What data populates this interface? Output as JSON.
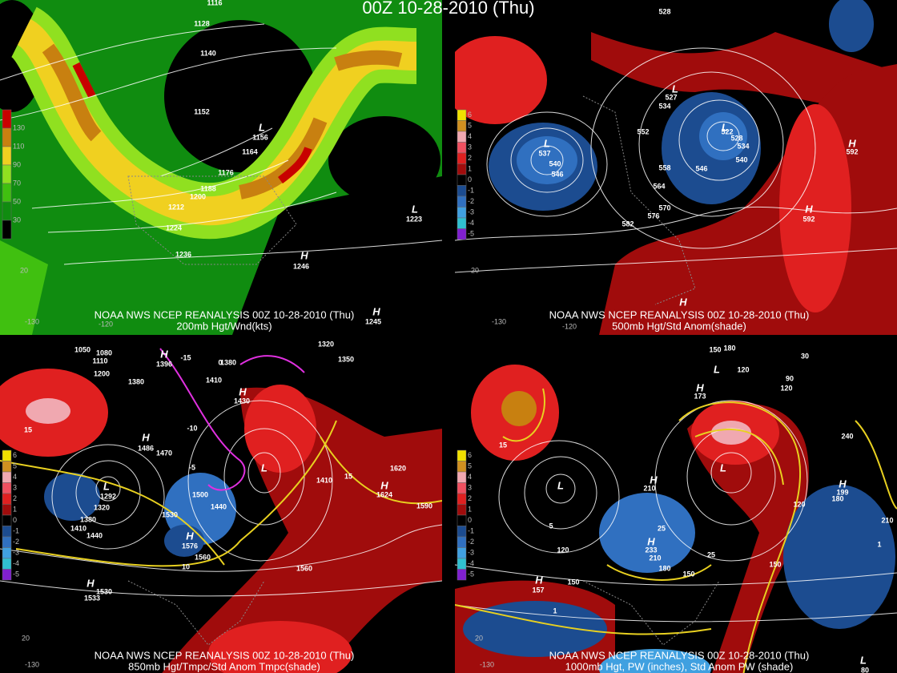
{
  "title": "00Z 10-28-2010 (Thu)",
  "panels": [
    {
      "source": "NOAA NWS NCEP REANALYSIS 00Z 10-28-2010 (Thu)",
      "caption": "200mb Hgt/Wnd(kts)",
      "legend": [
        {
          "label": "130",
          "color": "#c80000"
        },
        {
          "label": "110",
          "color": "#c88010"
        },
        {
          "label": "90",
          "color": "#f0d020"
        },
        {
          "label": "70",
          "color": "#90e020"
        },
        {
          "label": "50",
          "color": "#40c010"
        },
        {
          "label": "30",
          "color": "#108c10"
        }
      ],
      "labels": [
        "1116",
        "1128",
        "1140",
        "1152",
        "L",
        "1156",
        "1164",
        "1176",
        "1188",
        "1200",
        "1212",
        "1224",
        "1236",
        "H",
        "1246",
        "L",
        "1223",
        "H",
        "1245"
      ],
      "axis_labels": [
        "-130",
        "-120",
        "20"
      ]
    },
    {
      "source": "NOAA NWS NCEP REANALYSIS 00Z 10-28-2010 (Thu)",
      "caption": "500mb Hgt/Std Anom(shade)",
      "legend": [
        {
          "label": "6",
          "color": "#f0e000"
        },
        {
          "label": "5",
          "color": "#d09020"
        },
        {
          "label": "4",
          "color": "#f0a8b0"
        },
        {
          "label": "3",
          "color": "#f05060"
        },
        {
          "label": "2",
          "color": "#e02020"
        },
        {
          "label": "1",
          "color": "#a00c0c"
        },
        {
          "label": "0",
          "color": "#000000"
        },
        {
          "label": "-1",
          "color": "#1c4c90"
        },
        {
          "label": "-2",
          "color": "#3070c0"
        },
        {
          "label": "-3",
          "color": "#40a0e0"
        },
        {
          "label": "-4",
          "color": "#30c0d0"
        },
        {
          "label": "-5",
          "color": "#8020d0"
        }
      ],
      "labels": [
        "528",
        "L",
        "527",
        "534",
        "552",
        "558",
        "564",
        "570",
        "576",
        "582",
        "L",
        "537",
        "540",
        "546",
        "L",
        "522",
        "528",
        "534",
        "540",
        "546",
        "H",
        "592",
        "H",
        "592",
        "H"
      ],
      "axis_labels": [
        "-130",
        "-120",
        "20"
      ]
    },
    {
      "source": "NOAA NWS NCEP REANALYSIS 00Z 10-28-2010 (Thu)",
      "caption": "850mb Hgt/Tmpc/Std Anom Tmpc(shade)",
      "legend": [
        {
          "label": "6",
          "color": "#f0e000"
        },
        {
          "label": "5",
          "color": "#d09020"
        },
        {
          "label": "4",
          "color": "#f0a8b0"
        },
        {
          "label": "3",
          "color": "#f05060"
        },
        {
          "label": "2",
          "color": "#e02020"
        },
        {
          "label": "1",
          "color": "#a00c0c"
        },
        {
          "label": "0",
          "color": "#000000"
        },
        {
          "label": "-1",
          "color": "#1c4c90"
        },
        {
          "label": "-2",
          "color": "#3070c0"
        },
        {
          "label": "-3",
          "color": "#40a0e0"
        },
        {
          "label": "-4",
          "color": "#30c0d0"
        },
        {
          "label": "-5",
          "color": "#8020d0"
        }
      ],
      "labels": [
        "1050",
        "1080",
        "1110",
        "1200",
        "1380",
        "H",
        "1396",
        "1320",
        "1350",
        "1410",
        "1380",
        "H",
        "1430",
        "H",
        "1486",
        "1470",
        "L",
        "1292",
        "1320",
        "1380",
        "1410",
        "1440",
        "1530",
        "1500",
        "1440",
        "H",
        "1576",
        "1560",
        "H",
        "1533",
        "1530",
        "1560",
        "1590",
        "1620",
        "H",
        "1624",
        "1410",
        "L",
        "15",
        "10",
        "-5",
        "-10",
        "-15",
        "0",
        "15"
      ],
      "axis_labels": [
        "-130",
        "20"
      ]
    },
    {
      "source": "NOAA NWS NCEP REANALYSIS 00Z 10-28-2010 (Thu)",
      "caption": "1000mb Hgt, PW (inches), Std Anom PW (shade)",
      "legend": [
        {
          "label": "6",
          "color": "#f0e000"
        },
        {
          "label": "5",
          "color": "#d09020"
        },
        {
          "label": "4",
          "color": "#f0a8b0"
        },
        {
          "label": "3",
          "color": "#f05060"
        },
        {
          "label": "2",
          "color": "#e02020"
        },
        {
          "label": "1",
          "color": "#a00c0c"
        },
        {
          "label": "0",
          "color": "#000000"
        },
        {
          "label": "-1",
          "color": "#1c4c90"
        },
        {
          "label": "-2",
          "color": "#3070c0"
        },
        {
          "label": "-3",
          "color": "#40a0e0"
        },
        {
          "label": "-4",
          "color": "#30c0d0"
        },
        {
          "label": "-5",
          "color": "#8020d0"
        }
      ],
      "labels": [
        "150",
        "180",
        "L",
        "120",
        "H",
        "173",
        "90",
        "120",
        "30",
        "L",
        "120",
        "150",
        "H",
        "157",
        "H",
        "210",
        "H",
        "233",
        "210",
        "180",
        "150",
        "L",
        "120",
        "150",
        "180",
        "H",
        "199",
        "210",
        "240",
        "L",
        "80",
        "1",
        "25",
        "25",
        "5",
        "15",
        "1"
      ],
      "axis_labels": [
        "-130",
        "20"
      ]
    }
  ]
}
